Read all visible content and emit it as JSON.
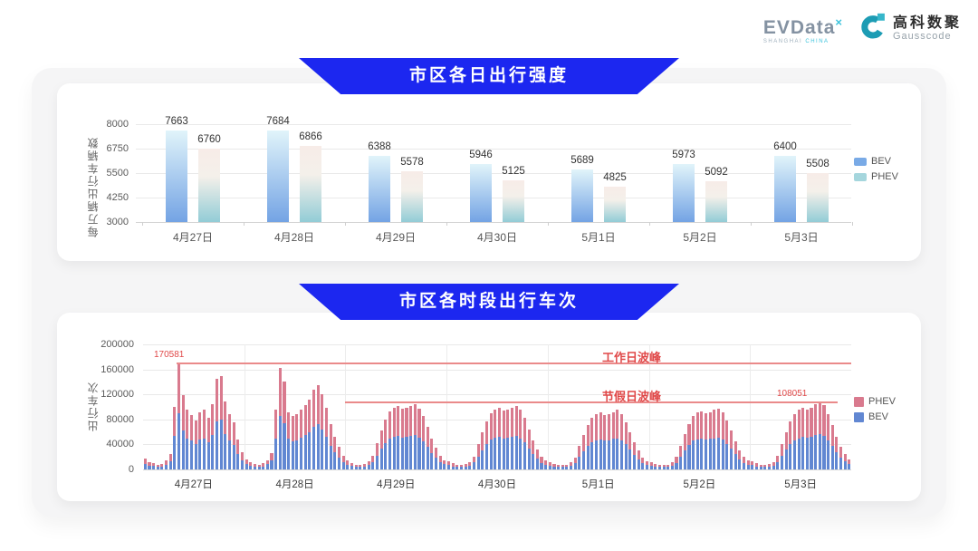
{
  "header": {
    "evdata": {
      "wordmark": "EVData",
      "sup_mark": "×",
      "subtext_1": "SHANGHAI",
      "subtext_2": "CHINA"
    },
    "gausscode": {
      "cn_name": "高科数聚",
      "en_name": "Gausscode"
    }
  },
  "colors": {
    "banner_blue": "#1c27f0",
    "bev_grad_top": "#e1f4fa",
    "bev_grad_bottom": "#73a3e4",
    "phev_grad_top": "#f7ece8",
    "phev_grad_mid": "#f4f0ea",
    "phev_grad_bottom": "#92ccd6",
    "legend_bev": "#79aae6",
    "legend_phev": "#a5d6dd",
    "stack_bev": "#6187d2",
    "stack_phev": "#d97a8e",
    "annotation_red": "#e04848",
    "annotation_line_red": "#ea8a8a",
    "grid": "#e9e9e9"
  },
  "chart_data": [
    {
      "type": "bar",
      "title": "市区各日出行强度",
      "ylabel": "每万辆出行车辆数",
      "ylim": [
        3000,
        8000
      ],
      "yticks": [
        3000,
        4250,
        5500,
        6750,
        8000
      ],
      "grid": true,
      "legend_position": "right",
      "legend": [
        "BEV",
        "PHEV"
      ],
      "categories": [
        "4月27日",
        "4月28日",
        "4月29日",
        "4月30日",
        "5月1日",
        "5月2日",
        "5月3日"
      ],
      "series": [
        {
          "name": "BEV",
          "values": [
            7663,
            7684,
            6388,
            5946,
            5689,
            5973,
            6400
          ]
        },
        {
          "name": "PHEV",
          "values": [
            6760,
            6866,
            5578,
            5125,
            4825,
            5092,
            5508
          ]
        }
      ]
    },
    {
      "type": "stacked-bar",
      "title": "市区各时段出行车次",
      "ylabel": "出行车次",
      "ylim": [
        0,
        200000
      ],
      "yticks": [
        0,
        40000,
        80000,
        120000,
        160000,
        200000
      ],
      "grid": true,
      "legend_position": "right",
      "legend": [
        "PHEV",
        "BEV"
      ],
      "x_unit": "hour_of_day",
      "hours_per_day": 24,
      "annotations": [
        {
          "label": "工作日波峰",
          "value": 170581,
          "value_label": "170581"
        },
        {
          "label": "节假日波峰",
          "value": 108051,
          "value_label": "108051"
        }
      ],
      "days": [
        {
          "label": "4月27日",
          "bev": [
            9000,
            6400,
            5100,
            4300,
            4800,
            7500,
            12800,
            53000,
            90581,
            62000,
            50000,
            46000,
            41000,
            48000,
            50000,
            43000,
            55000,
            77000,
            80000,
            57000,
            46000,
            39000,
            25000,
            15000
          ],
          "phev": [
            8000,
            5600,
            4400,
            3700,
            4200,
            6500,
            11200,
            47000,
            80000,
            57000,
            45000,
            41000,
            37000,
            43000,
            45000,
            39000,
            49000,
            68000,
            69000,
            51000,
            42000,
            36000,
            23000,
            13000
          ]
        },
        {
          "label": "4月28日",
          "bev": [
            8500,
            5800,
            4800,
            4300,
            5000,
            8000,
            13800,
            50000,
            86000,
            74000,
            49000,
            45000,
            47000,
            51000,
            55000,
            59000,
            68000,
            72000,
            64000,
            52000,
            38000,
            27000,
            19000,
            12000
          ],
          "phev": [
            7500,
            5200,
            4200,
            3700,
            4500,
            7000,
            12200,
            45000,
            77000,
            66000,
            43000,
            40000,
            41000,
            45000,
            48000,
            53000,
            60000,
            63000,
            57000,
            46000,
            34000,
            25000,
            17000,
            10000
          ]
        },
        {
          "label": "4月29日",
          "bev": [
            7400,
            5300,
            4200,
            4000,
            4800,
            6900,
            11700,
            22000,
            33000,
            42000,
            49000,
            52000,
            53000,
            51000,
            52000,
            54000,
            55000,
            51000,
            45000,
            36000,
            26000,
            18500,
            11700,
            8000
          ],
          "phev": [
            6600,
            4700,
            3800,
            3500,
            4200,
            6100,
            10300,
            20000,
            29000,
            38000,
            44000,
            46000,
            48000,
            46000,
            47000,
            48000,
            50000,
            46000,
            40000,
            32000,
            24000,
            16500,
            10300,
            7000
          ]
        },
        {
          "label": "4月30日",
          "bev": [
            6900,
            5000,
            4000,
            3700,
            4500,
            6400,
            11100,
            21000,
            31000,
            41000,
            48000,
            51000,
            52000,
            50000,
            51000,
            52000,
            54000,
            50000,
            43000,
            34000,
            24000,
            17000,
            10600,
            7400
          ],
          "phev": [
            6100,
            4500,
            3500,
            3300,
            4000,
            5600,
            9900,
            19000,
            28000,
            36000,
            42000,
            45000,
            46000,
            44000,
            45000,
            47000,
            48000,
            45000,
            39000,
            30000,
            22000,
            15000,
            9400,
            6600
          ]
        },
        {
          "label": "5月1日",
          "bev": [
            6400,
            4800,
            3700,
            3700,
            4200,
            5800,
            10000,
            19600,
            29000,
            38000,
            44000,
            47000,
            48000,
            46000,
            47000,
            49000,
            50000,
            47000,
            40000,
            32000,
            23000,
            16000,
            10000,
            6900
          ],
          "phev": [
            5600,
            4200,
            3300,
            3300,
            3800,
            5200,
            9000,
            17400,
            26000,
            33000,
            39000,
            42000,
            43000,
            41000,
            42000,
            43000,
            45000,
            42000,
            36000,
            28000,
            20000,
            14000,
            9000,
            6100
          ]
        },
        {
          "label": "5月2日",
          "bev": [
            6400,
            4800,
            4000,
            3700,
            4200,
            6100,
            10600,
            20100,
            30000,
            39000,
            46000,
            48000,
            49000,
            48000,
            49000,
            50000,
            51000,
            48000,
            41000,
            33000,
            24000,
            16400,
            10600,
            7400
          ],
          "phev": [
            5600,
            4200,
            3500,
            3300,
            3800,
            5400,
            9400,
            17900,
            26000,
            34000,
            40000,
            43000,
            44000,
            42000,
            43000,
            45000,
            46000,
            43000,
            37000,
            29000,
            21000,
            14600,
            9400,
            6600
          ]
        },
        {
          "label": "5月3日",
          "bev": [
            6900,
            5000,
            4200,
            4000,
            4500,
            6400,
            11700,
            21700,
            32000,
            41000,
            47000,
            50000,
            52000,
            51000,
            52000,
            55000,
            57051,
            54000,
            47000,
            38000,
            28000,
            19000,
            12700,
            8500
          ],
          "phev": [
            6100,
            4500,
            3800,
            3500,
            4000,
            5600,
            10300,
            19300,
            28000,
            36000,
            42000,
            45000,
            46000,
            45000,
            47000,
            49000,
            51000,
            49000,
            42000,
            33000,
            24000,
            17000,
            11300,
            7500
          ]
        }
      ]
    }
  ]
}
